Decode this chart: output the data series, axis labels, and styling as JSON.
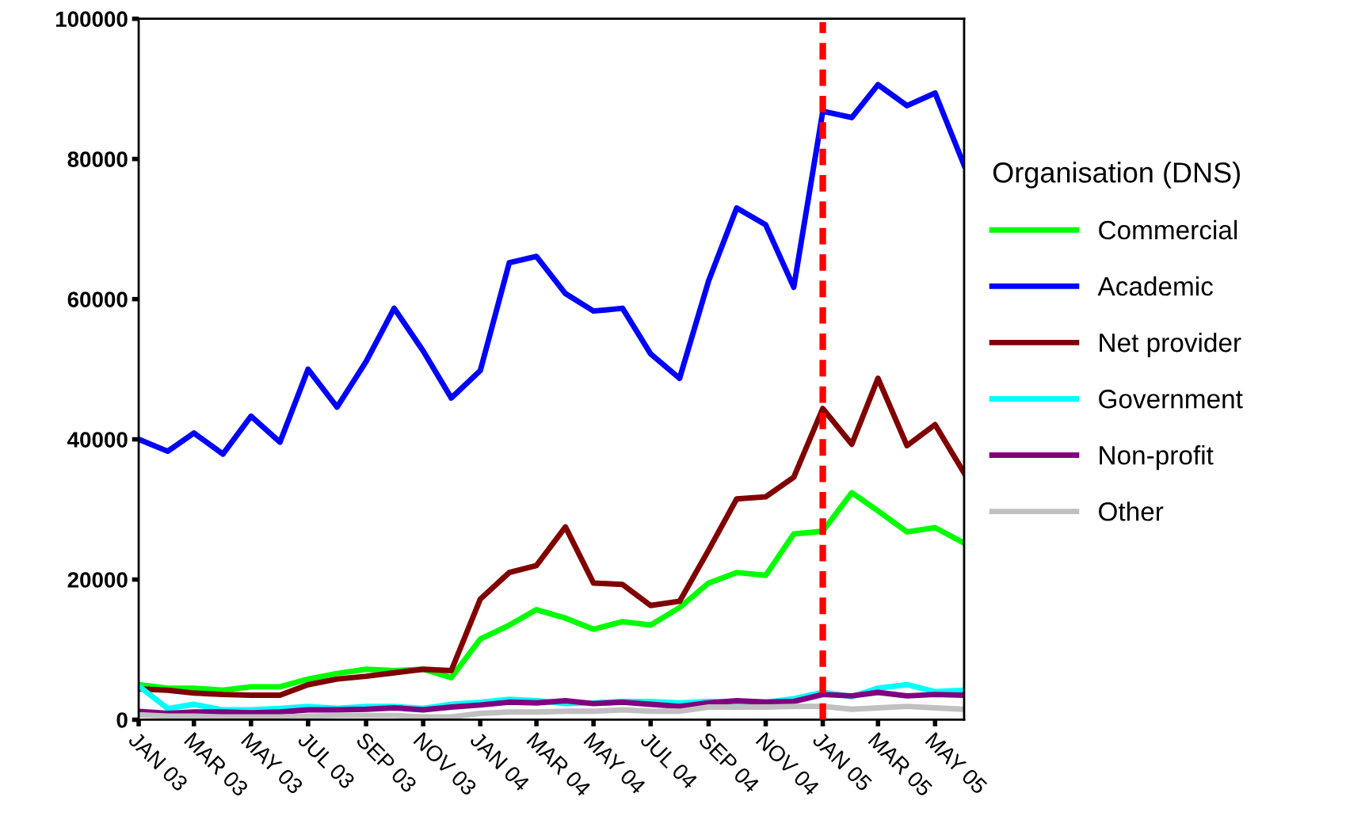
{
  "chart_data": {
    "type": "line",
    "legend_title": "Organisation (DNS)",
    "legend": "right",
    "grid": false,
    "line_style": "solid",
    "marker": "none",
    "x": [
      "2003-01",
      "2003-02",
      "2003-03",
      "2003-04",
      "2003-05",
      "2003-06",
      "2003-07",
      "2003-08",
      "2003-09",
      "2003-10",
      "2003-11",
      "2003-12",
      "2004-01",
      "2004-02",
      "2004-03",
      "2004-04",
      "2004-05",
      "2004-06",
      "2004-07",
      "2004-08",
      "2004-09",
      "2004-10",
      "2004-11",
      "2004-12",
      "2005-01",
      "2005-02",
      "2005-03",
      "2005-04",
      "2005-05",
      "2005-06"
    ],
    "xlim": [
      "2003-01",
      "2005-06"
    ],
    "xticks": [
      {
        "value": "2003-01",
        "label": "JAN 03"
      },
      {
        "value": "2003-03",
        "label": "MAR 03"
      },
      {
        "value": "2003-05",
        "label": "MAY 03"
      },
      {
        "value": "2003-07",
        "label": "JUL 03"
      },
      {
        "value": "2003-09",
        "label": "SEP 03"
      },
      {
        "value": "2003-11",
        "label": "NOV 03"
      },
      {
        "value": "2004-01",
        "label": "JAN 04"
      },
      {
        "value": "2004-03",
        "label": "MAR 04"
      },
      {
        "value": "2004-05",
        "label": "MAY 04"
      },
      {
        "value": "2004-07",
        "label": "JUL 04"
      },
      {
        "value": "2004-09",
        "label": "SEP 04"
      },
      {
        "value": "2004-11",
        "label": "NOV 04"
      },
      {
        "value": "2005-01",
        "label": "JAN 05"
      },
      {
        "value": "2005-03",
        "label": "MAR 05"
      },
      {
        "value": "2005-05",
        "label": "MAY 05"
      }
    ],
    "ylim": [
      0,
      100000
    ],
    "yticks": [
      0,
      20000,
      40000,
      60000,
      80000,
      100000
    ],
    "ref_lines": [
      {
        "axis": "x",
        "value": "2005-01",
        "color": "#ff0000",
        "line_style": "dashed"
      }
    ],
    "series": [
      {
        "name": "Commercial",
        "color": "#00ff00",
        "values": [
          5000,
          4500,
          4500,
          4200,
          4700,
          4700,
          5800,
          6600,
          7200,
          7000,
          7200,
          6000,
          11500,
          13500,
          15700,
          14500,
          12900,
          14000,
          13500,
          16000,
          19500,
          21000,
          20600,
          26500,
          26900,
          32400,
          29800,
          26800,
          27400,
          25200
        ]
      },
      {
        "name": "Academic",
        "color": "#0000ff",
        "values": [
          40000,
          38300,
          40900,
          37900,
          43300,
          39600,
          50000,
          44600,
          51100,
          58700,
          52600,
          45900,
          49800,
          65200,
          66100,
          60800,
          58300,
          58700,
          52200,
          48700,
          62600,
          73000,
          70600,
          61700,
          86800,
          85900,
          90600,
          87600,
          89400,
          79100
        ]
      },
      {
        "name": "Net provider",
        "color": "#800000",
        "values": [
          4400,
          4200,
          3800,
          3600,
          3500,
          3500,
          5000,
          5800,
          6200,
          6700,
          7200,
          7000,
          17200,
          21000,
          22000,
          27500,
          19500,
          19300,
          16300,
          16900,
          24200,
          31500,
          31800,
          34600,
          44400,
          39300,
          48700,
          39100,
          42100,
          35200
        ]
      },
      {
        "name": "Government",
        "color": "#00ffff",
        "values": [
          4800,
          1600,
          2200,
          1400,
          1400,
          1600,
          1900,
          1600,
          1900,
          1900,
          1600,
          2200,
          2500,
          2900,
          2700,
          2300,
          2400,
          2600,
          2600,
          2400,
          2600,
          2500,
          2500,
          3000,
          3900,
          3300,
          4500,
          5000,
          4000,
          4200
        ]
      },
      {
        "name": "Non-profit",
        "color": "#800080",
        "values": [
          1200,
          900,
          1100,
          1100,
          1000,
          1100,
          1400,
          1400,
          1500,
          1700,
          1400,
          1800,
          2100,
          2500,
          2400,
          2700,
          2300,
          2500,
          2200,
          1900,
          2400,
          2700,
          2500,
          2600,
          3600,
          3400,
          3900,
          3400,
          3600,
          3500
        ]
      },
      {
        "name": "Other",
        "color": "#c0c0c0",
        "values": [
          700,
          500,
          500,
          400,
          400,
          400,
          500,
          600,
          600,
          600,
          400,
          400,
          900,
          1100,
          1100,
          1200,
          1200,
          1400,
          1200,
          1200,
          1800,
          1800,
          1800,
          1900,
          1900,
          1500,
          1700,
          1900,
          1700,
          1500
        ]
      }
    ]
  }
}
